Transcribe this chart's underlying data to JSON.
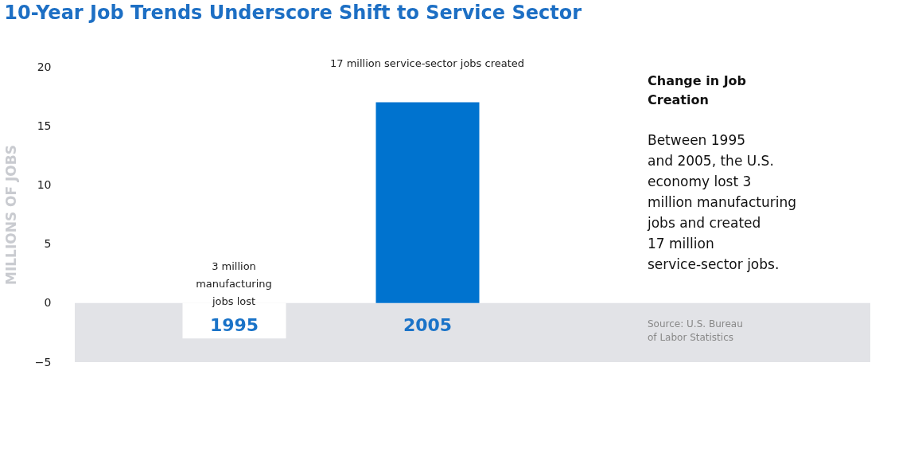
{
  "chart_data": {
    "type": "bar",
    "title": "10-Year Job Trends Underscore Shift to Service Sector",
    "ylabel": "MILLIONS OF JOBS",
    "categories": [
      "1995",
      "2005"
    ],
    "values": [
      -3,
      17
    ],
    "colors": [
      "#ffffff",
      "#0073cf"
    ],
    "ylim": [
      -5,
      20
    ],
    "yticks": [
      -5,
      0,
      5,
      10,
      15,
      20
    ],
    "bands": [
      {
        "axis": "y",
        "from": -5,
        "to": 0,
        "color": "#e2e3e7"
      }
    ],
    "annotations": [
      "3 million\nmanufacturing\njobs lost",
      "17 million service-sector jobs created",
      "Change in Job\nCreation",
      "Between 1995\nand 2005, the U.S.\neconomy lost 3\nmillion manufacturing\njobs and created\n17 million\nservice-sector jobs.",
      "Source: U.S. Bureau\nof Labor Statistics"
    ],
    "grid": false
  }
}
